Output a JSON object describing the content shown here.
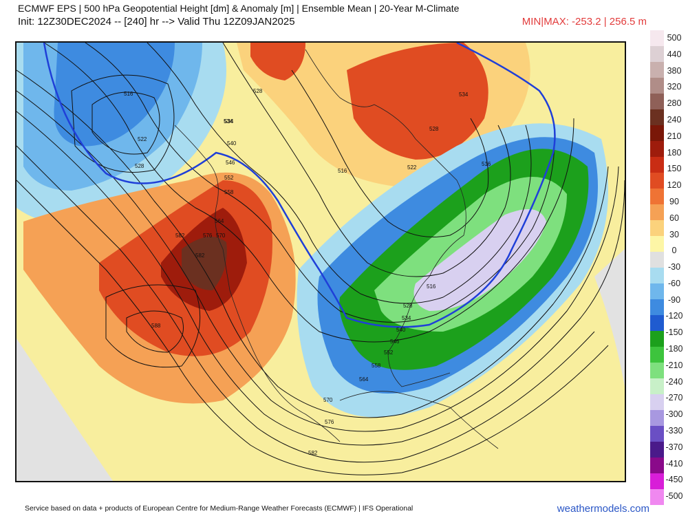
{
  "header": {
    "title_line1": "ECMWF EPS | 500 hPa Geopotential Height [dm] & Anomaly [m] | Ensemble Mean | 20-Year M-Climate",
    "title_line2": "Init: 12Z30DEC2024 -- [240] hr --> Valid Thu 12Z09JAN2025",
    "minmax": "MIN|MAX: -253.2 | 256.5 m"
  },
  "colorbar": {
    "labels": [
      "500",
      "440",
      "380",
      "320",
      "280",
      "240",
      "210",
      "180",
      "150",
      "120",
      "90",
      "60",
      "30",
      "0",
      "-30",
      "-60",
      "-90",
      "-120",
      "-150",
      "-180",
      "-210",
      "-240",
      "-270",
      "-300",
      "-330",
      "-370",
      "-410",
      "-450",
      "-500"
    ],
    "colors": [
      "#f6e8ee",
      "#ddd0d4",
      "#c9b0ae",
      "#b08d88",
      "#8f6058",
      "#6b3020",
      "#7a1708",
      "#9e1c0c",
      "#c92d14",
      "#e04c22",
      "#ef7334",
      "#f5a155",
      "#fbd27c",
      "#fdf6a6",
      "#e0e0e0",
      "#a8dcf0",
      "#6fb7ec",
      "#3e8be0",
      "#1f5bd0",
      "#1ca01c",
      "#3dc43d",
      "#7ee07e",
      "#c8f0c8",
      "#d8d0f0",
      "#a898e0",
      "#6a4fc4",
      "#4a1a8a",
      "#8a0a8a",
      "#d81ed8",
      "#f088f0"
    ]
  },
  "map": {
    "contour_labels": [
      "516",
      "522",
      "528",
      "534",
      "540",
      "546",
      "552",
      "558",
      "564",
      "570",
      "576",
      "582",
      "588"
    ],
    "label_items": [
      {
        "text": "516"
      },
      {
        "text": "522"
      },
      {
        "text": "528"
      },
      {
        "text": "534"
      },
      {
        "text": "540"
      },
      {
        "text": "546"
      },
      {
        "text": "552"
      },
      {
        "text": "558"
      },
      {
        "text": "564"
      },
      {
        "text": "570"
      },
      {
        "text": "576"
      },
      {
        "text": "582"
      },
      {
        "text": "588"
      },
      {
        "text": "528"
      },
      {
        "text": "534"
      },
      {
        "text": "528"
      },
      {
        "text": "516"
      },
      {
        "text": "522"
      },
      {
        "text": "528"
      },
      {
        "text": "534"
      },
      {
        "text": "540"
      },
      {
        "text": "546"
      },
      {
        "text": "552"
      },
      {
        "text": "558"
      },
      {
        "text": "564"
      },
      {
        "text": "570"
      },
      {
        "text": "576"
      },
      {
        "text": "582"
      },
      {
        "text": "534"
      },
      {
        "text": "516"
      },
      {
        "text": "516"
      },
      {
        "text": "582"
      }
    ]
  },
  "footer": {
    "credit": "Service based on data + products of European Centre for Medium-Range Weather Forecasts (ECMWF) | IFS Operational",
    "brand": "weathermodels.com"
  }
}
